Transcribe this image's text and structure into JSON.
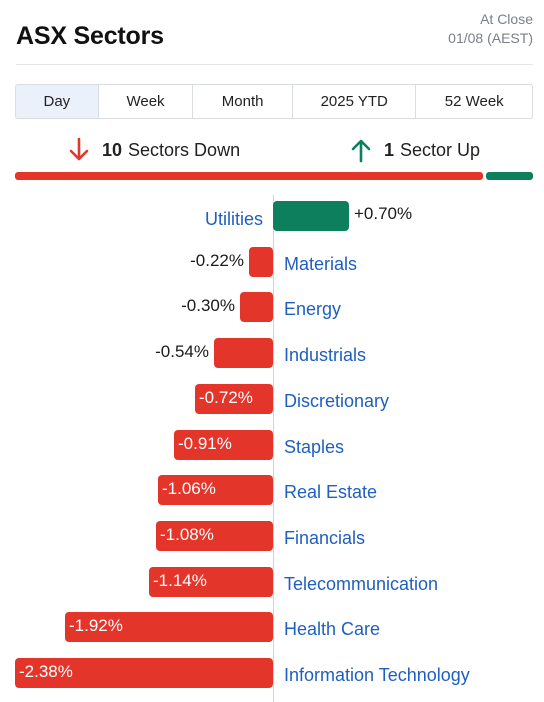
{
  "header": {
    "title": "ASX Sectors",
    "status_line1": "At Close",
    "status_line2": "01/08 (AEST)"
  },
  "tabs": [
    {
      "label": "Day",
      "active": true
    },
    {
      "label": "Week",
      "active": false
    },
    {
      "label": "Month",
      "active": false
    },
    {
      "label": "2025 YTD",
      "active": false
    },
    {
      "label": "52 Week",
      "active": false
    }
  ],
  "summary": {
    "down_count": "10",
    "down_label": "Sectors Down",
    "up_count": "1",
    "up_label": "Sector Up",
    "down_color": "#e4352b",
    "up_color": "#0d7f5d"
  },
  "sectors": [
    {
      "name": "Utilities",
      "change": 0.7,
      "label": "+0.70%"
    },
    {
      "name": "Materials",
      "change": -0.22,
      "label": "-0.22%"
    },
    {
      "name": "Energy",
      "change": -0.3,
      "label": "-0.30%"
    },
    {
      "name": "Industrials",
      "change": -0.54,
      "label": "-0.54%"
    },
    {
      "name": "Discretionary",
      "change": -0.72,
      "label": "-0.72%"
    },
    {
      "name": "Staples",
      "change": -0.91,
      "label": "-0.91%"
    },
    {
      "name": "Real Estate",
      "change": -1.06,
      "label": "-1.06%"
    },
    {
      "name": "Financials",
      "change": -1.08,
      "label": "-1.08%"
    },
    {
      "name": "Telecommunication",
      "change": -1.14,
      "label": "-1.14%"
    },
    {
      "name": "Health Care",
      "change": -1.92,
      "label": "-1.92%"
    },
    {
      "name": "Information Technology",
      "change": -2.38,
      "label": "-2.38%"
    }
  ]
}
